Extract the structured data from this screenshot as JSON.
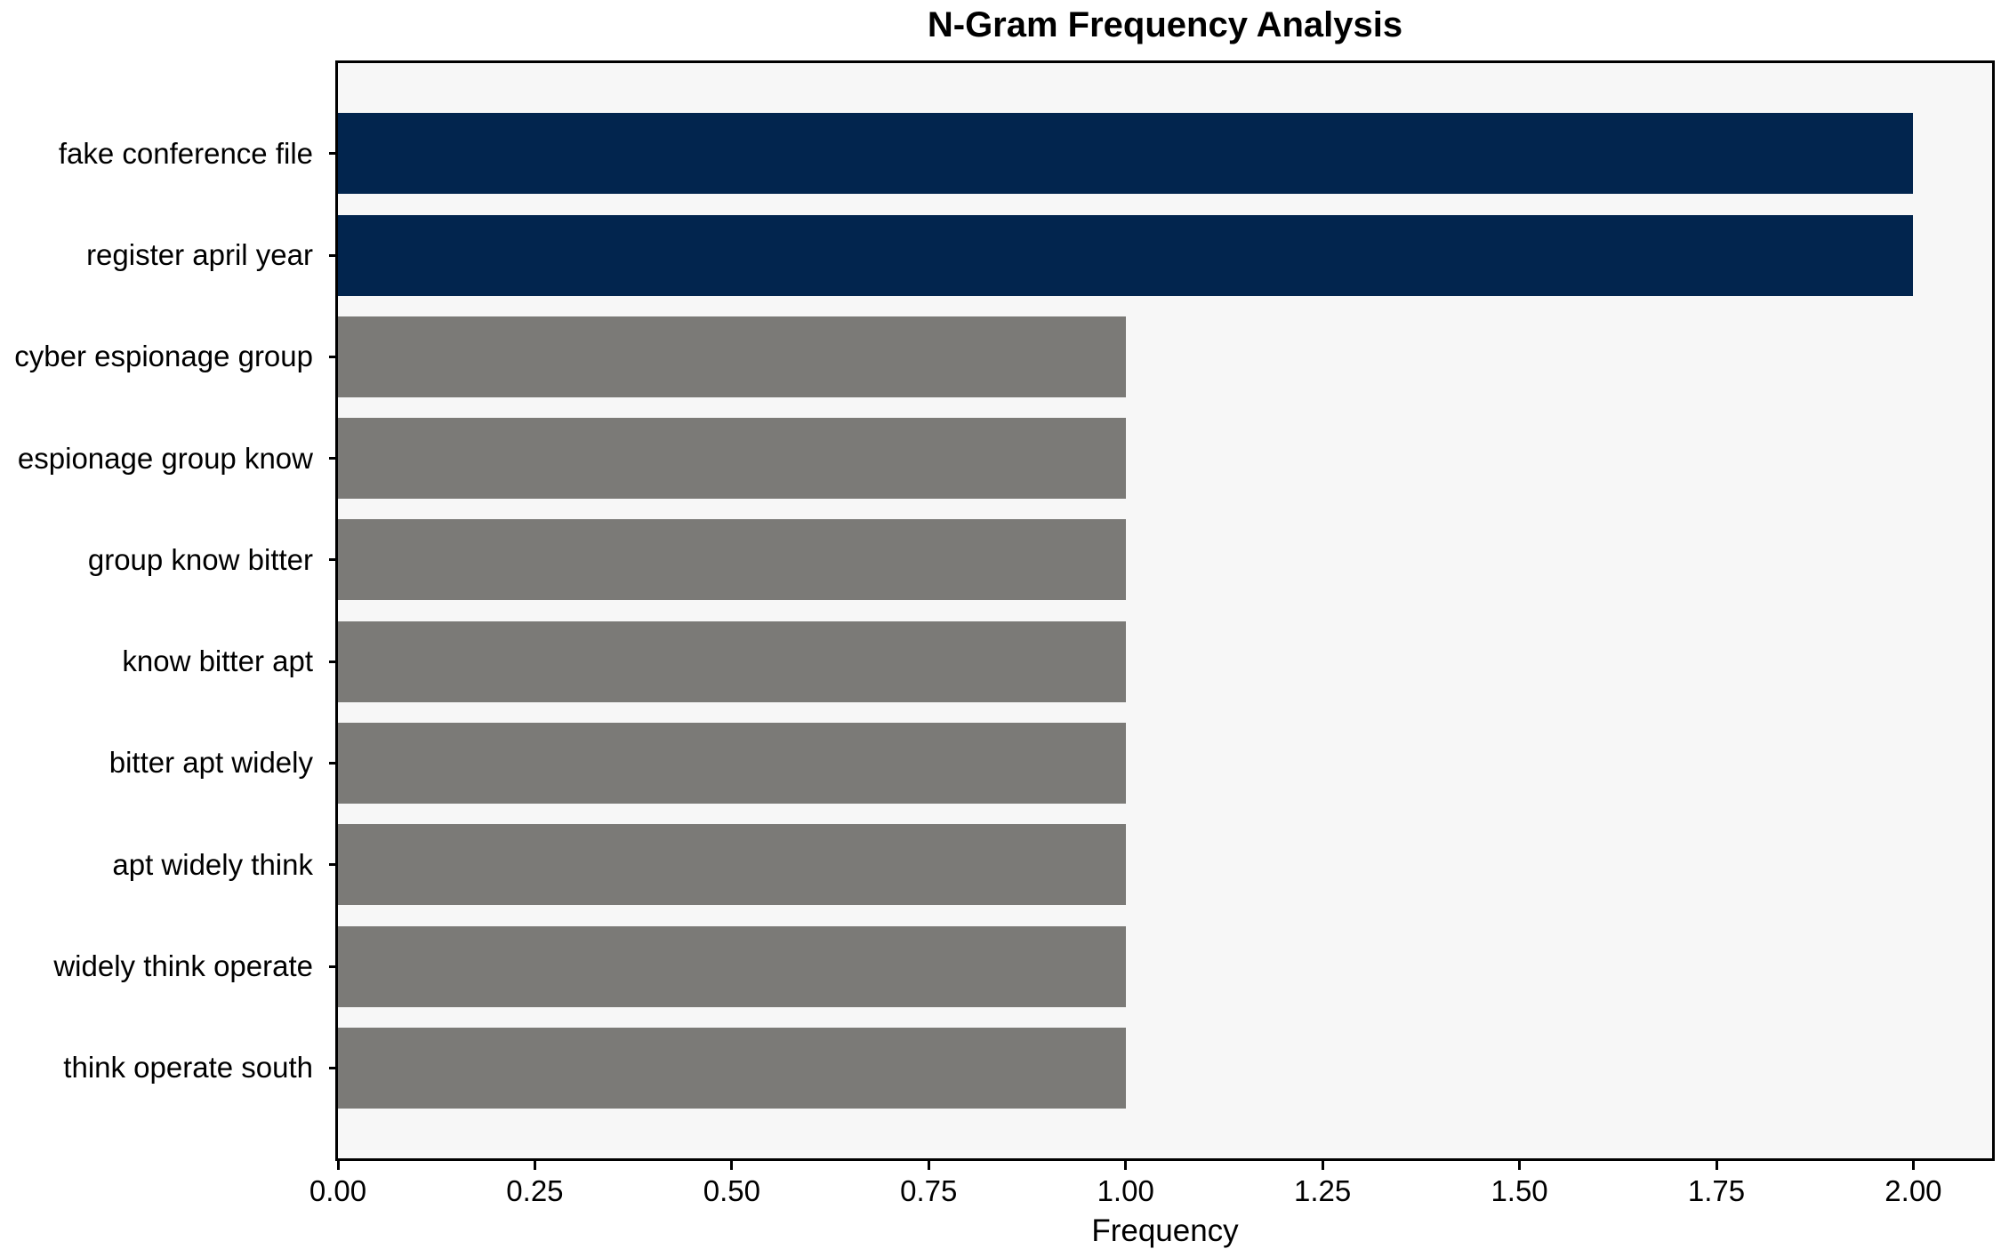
{
  "chart_data": {
    "type": "bar",
    "orientation": "horizontal",
    "title": "N-Gram Frequency Analysis",
    "xlabel": "Frequency",
    "ylabel": "",
    "categories": [
      "fake conference file",
      "register april year",
      "cyber espionage group",
      "espionage group know",
      "group know bitter",
      "know bitter apt",
      "bitter apt widely",
      "apt widely think",
      "widely think operate",
      "think operate south"
    ],
    "values": [
      2,
      2,
      1,
      1,
      1,
      1,
      1,
      1,
      1,
      1
    ],
    "bar_colors": [
      "#02254e",
      "#02254e",
      "#7b7a77",
      "#7b7a77",
      "#7b7a77",
      "#7b7a77",
      "#7b7a77",
      "#7b7a77",
      "#7b7a77",
      "#7b7a77"
    ],
    "xlim": [
      0,
      2.1
    ],
    "xtick_values": [
      0,
      0.25,
      0.5,
      0.75,
      1.0,
      1.25,
      1.5,
      1.75,
      2.0
    ],
    "xtick_labels": [
      "0.00",
      "0.25",
      "0.50",
      "0.75",
      "1.00",
      "1.25",
      "1.50",
      "1.75",
      "2.00"
    ],
    "grid": false,
    "legend": null,
    "colors": {
      "highlight": "#02254e",
      "default": "#7b7a77",
      "plot_bg": "#f7f7f7",
      "figure_bg": "#ffffff",
      "spine": "#000000",
      "text": "#000000"
    }
  }
}
